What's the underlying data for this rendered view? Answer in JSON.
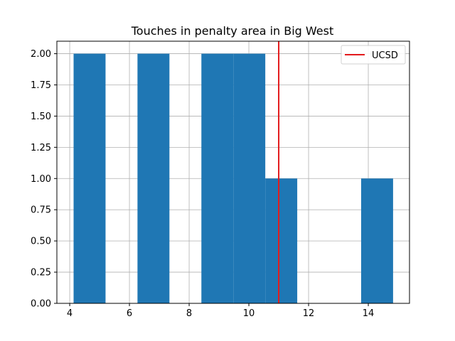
{
  "chart_data": {
    "type": "bar",
    "title": "Touches in penalty area in Big West",
    "xlabel": "",
    "ylabel": "",
    "xlim": [
      3.57,
      15.38
    ],
    "ylim": [
      0,
      2.1
    ],
    "grid": true,
    "legend_position": "top-right",
    "bins": [
      {
        "x0": 4.13,
        "x1": 5.2,
        "count": 2
      },
      {
        "x0": 6.27,
        "x1": 7.34,
        "count": 2
      },
      {
        "x0": 8.41,
        "x1": 9.48,
        "count": 2
      },
      {
        "x0": 9.48,
        "x1": 10.55,
        "count": 2
      },
      {
        "x0": 10.55,
        "x1": 11.62,
        "count": 1
      },
      {
        "x0": 13.76,
        "x1": 14.83,
        "count": 1
      }
    ],
    "reference_line": {
      "name": "UCSD",
      "x": 11.0,
      "color": "#e31a1c"
    },
    "x_ticks": [
      4,
      6,
      8,
      10,
      12,
      14
    ],
    "y_ticks": [
      0.0,
      0.25,
      0.5,
      0.75,
      1.0,
      1.25,
      1.5,
      1.75,
      2.0
    ],
    "x_tick_labels": [
      "4",
      "6",
      "8",
      "10",
      "12",
      "14"
    ],
    "y_tick_labels": [
      "0.00",
      "0.25",
      "0.50",
      "0.75",
      "1.00",
      "1.25",
      "1.50",
      "1.75",
      "2.00"
    ],
    "bar_color": "#1f77b4"
  },
  "legend": {
    "ucsd_label": "UCSD"
  }
}
